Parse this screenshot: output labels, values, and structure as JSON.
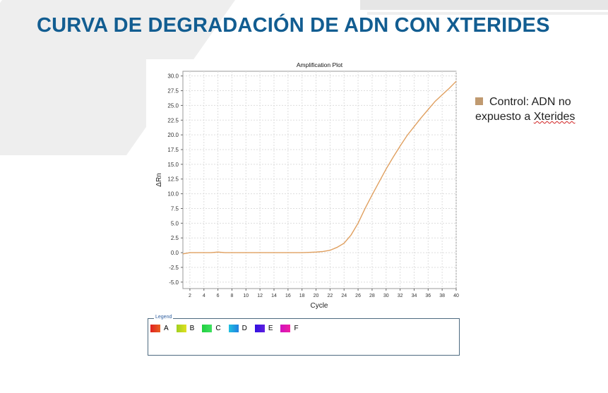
{
  "slide": {
    "title": "CURVA DE DEGRADACIÓN DE ADN CON XTERIDES"
  },
  "annotation": {
    "label_line1": "Control: ADN no",
    "label_line2_prefix": "expuesto a ",
    "label_line2_word": "Xterides",
    "color": "#c09a70"
  },
  "chart_data": {
    "type": "line",
    "title": "Amplification Plot",
    "xlabel": "Cycle",
    "ylabel": "ΔRn",
    "xlim": [
      1,
      40
    ],
    "ylim": [
      -6.1,
      30.8
    ],
    "xticks": [
      2,
      4,
      6,
      8,
      10,
      12,
      14,
      16,
      18,
      20,
      22,
      24,
      26,
      28,
      30,
      32,
      34,
      36,
      38,
      40
    ],
    "yticks": [
      "30.0",
      "27.5",
      "25.0",
      "22.5",
      "20.0",
      "17.5",
      "15.0",
      "12.5",
      "10.0",
      "7.5",
      "5.0",
      "2.5",
      "0.0",
      "-2.5",
      "-5.0"
    ],
    "grid": true,
    "series": [
      {
        "name": "Control",
        "color": "#e0a060",
        "x": [
          1,
          2,
          3,
          4,
          5,
          6,
          7,
          8,
          9,
          10,
          11,
          12,
          13,
          14,
          15,
          16,
          17,
          18,
          19,
          20,
          21,
          22,
          23,
          24,
          25,
          26,
          27,
          28,
          29,
          30,
          31,
          32,
          33,
          34,
          35,
          36,
          37,
          38,
          39,
          40
        ],
        "y": [
          -0.2,
          0,
          0,
          0,
          0,
          0.1,
          0,
          0,
          0,
          0,
          0,
          0,
          0,
          0,
          0,
          0,
          0,
          0,
          0.05,
          0.1,
          0.2,
          0.4,
          0.9,
          1.6,
          3,
          5,
          7.5,
          9.8,
          12,
          14.2,
          16.2,
          18.1,
          19.9,
          21.4,
          22.9,
          24.3,
          25.7,
          26.8,
          27.9,
          29.1
        ]
      }
    ],
    "legend": {
      "title": "Legend",
      "placement": "bottom",
      "items": [
        {
          "label": "A",
          "c1": "#e02020",
          "c2": "#e86020"
        },
        {
          "label": "B",
          "c1": "#a0d020",
          "c2": "#e0e020"
        },
        {
          "label": "C",
          "c1": "#20d040",
          "c2": "#40e060"
        },
        {
          "label": "D",
          "c1": "#20c0e0",
          "c2": "#2080e0"
        },
        {
          "label": "E",
          "c1": "#3010e0",
          "c2": "#6020e0"
        },
        {
          "label": "F",
          "c1": "#d010c0",
          "c2": "#f020a0"
        }
      ]
    }
  }
}
